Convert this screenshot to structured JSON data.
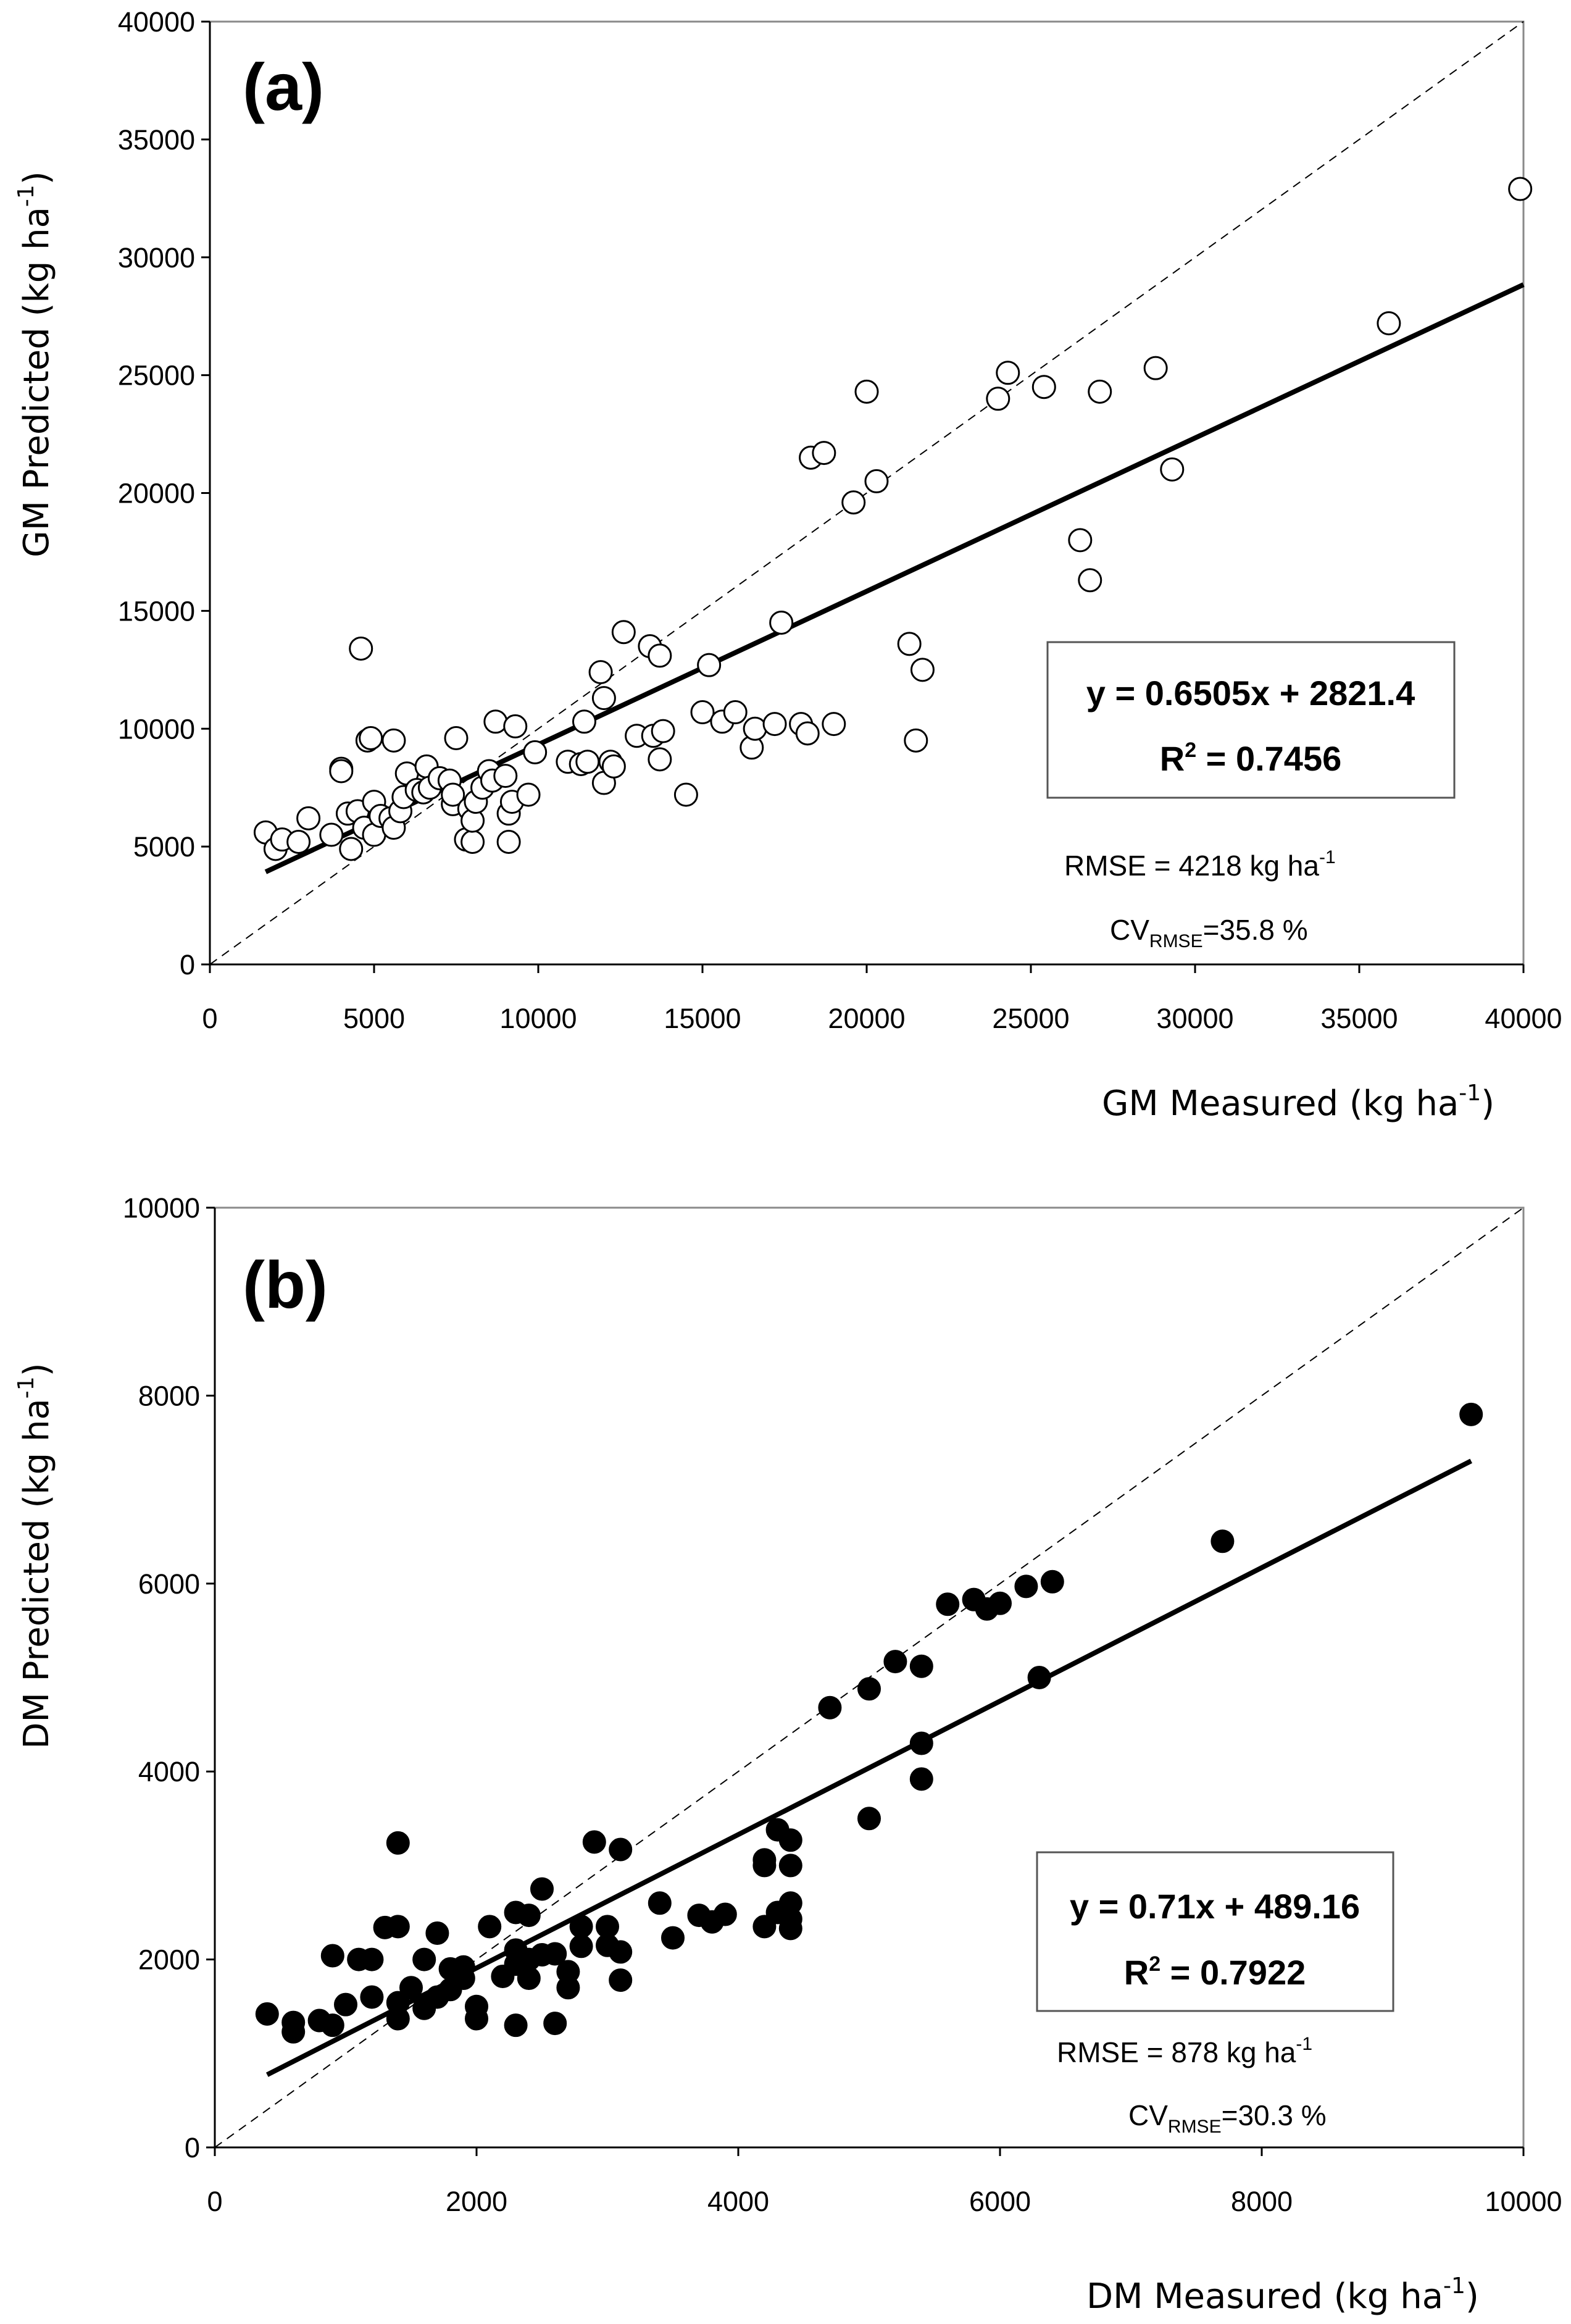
{
  "chart_data": [
    {
      "panel_label": "(a)",
      "type": "scatter",
      "marker": "open-circle",
      "xlabel": {
        "text": "GM Measured (kg ha",
        "sup": "-1",
        "tail": ")"
      },
      "ylabel": {
        "text": "GM Predicted (kg ha",
        "sup": "-1",
        "tail": ")"
      },
      "xlim": [
        0,
        40000
      ],
      "ylim": [
        0,
        40000
      ],
      "xticks": [
        "0",
        "5000",
        "10000",
        "15000",
        "20000",
        "25000",
        "30000",
        "35000",
        "40000"
      ],
      "yticks": [
        "0",
        "5000",
        "10000",
        "15000",
        "20000",
        "25000",
        "30000",
        "35000",
        "40000"
      ],
      "grid": false,
      "equation": "y = 0.6505x + 2821.4",
      "r2": {
        "prefix": "R",
        "sup": "2",
        "value": " = 0.7456"
      },
      "rmse": {
        "text": "RMSE = 4218 kg ha",
        "sup": "-1"
      },
      "cv": {
        "prefix": "CV",
        "sub": "RMSE",
        "value": "=35.8 %"
      },
      "fit": {
        "slope": 0.6505,
        "intercept": 2821.4,
        "x_from": 1700,
        "x_to": 40000
      },
      "one_to_one_line": true,
      "points": [
        [
          1700,
          5600
        ],
        [
          2000,
          4900
        ],
        [
          2200,
          5300
        ],
        [
          2700,
          5200
        ],
        [
          3000,
          6200
        ],
        [
          3700,
          5500
        ],
        [
          4000,
          8300
        ],
        [
          4000,
          8200
        ],
        [
          4200,
          6400
        ],
        [
          4300,
          4900
        ],
        [
          4500,
          6500
        ],
        [
          4600,
          13400
        ],
        [
          4700,
          5800
        ],
        [
          4800,
          9500
        ],
        [
          4900,
          9600
        ],
        [
          5000,
          5500
        ],
        [
          5000,
          6900
        ],
        [
          5200,
          6300
        ],
        [
          5500,
          6200
        ],
        [
          5600,
          5800
        ],
        [
          5600,
          9500
        ],
        [
          5800,
          6500
        ],
        [
          5900,
          7100
        ],
        [
          6000,
          8100
        ],
        [
          6300,
          7400
        ],
        [
          6500,
          7300
        ],
        [
          6600,
          8400
        ],
        [
          6700,
          7500
        ],
        [
          7000,
          7900
        ],
        [
          7300,
          7800
        ],
        [
          7400,
          6800
        ],
        [
          7400,
          7200
        ],
        [
          7500,
          9600
        ],
        [
          7800,
          5300
        ],
        [
          7900,
          6600
        ],
        [
          8000,
          5200
        ],
        [
          8000,
          6100
        ],
        [
          8100,
          6900
        ],
        [
          8300,
          7500
        ],
        [
          8500,
          8200
        ],
        [
          8600,
          7800
        ],
        [
          8700,
          10300
        ],
        [
          9000,
          8000
        ],
        [
          9100,
          5200
        ],
        [
          9100,
          6400
        ],
        [
          9200,
          6900
        ],
        [
          9300,
          10100
        ],
        [
          9700,
          7200
        ],
        [
          9900,
          9000
        ],
        [
          10900,
          8600
        ],
        [
          11300,
          8500
        ],
        [
          11400,
          10300
        ],
        [
          11500,
          8600
        ],
        [
          11900,
          12400
        ],
        [
          12000,
          11300
        ],
        [
          12000,
          7700
        ],
        [
          12200,
          8600
        ],
        [
          12300,
          8400
        ],
        [
          12600,
          14100
        ],
        [
          13000,
          9700
        ],
        [
          13400,
          13500
        ],
        [
          13500,
          9700
        ],
        [
          13700,
          13100
        ],
        [
          13700,
          8700
        ],
        [
          13800,
          9900
        ],
        [
          14500,
          7200
        ],
        [
          15000,
          10700
        ],
        [
          15200,
          12700
        ],
        [
          15600,
          10300
        ],
        [
          16000,
          10700
        ],
        [
          16500,
          9200
        ],
        [
          16600,
          10000
        ],
        [
          17200,
          10200
        ],
        [
          17400,
          14500
        ],
        [
          18000,
          10200
        ],
        [
          18200,
          9800
        ],
        [
          18300,
          21500
        ],
        [
          18700,
          21700
        ],
        [
          19000,
          10200
        ],
        [
          19600,
          19600
        ],
        [
          20000,
          24300
        ],
        [
          20300,
          20500
        ],
        [
          21300,
          13600
        ],
        [
          21500,
          9500
        ],
        [
          21700,
          12500
        ],
        [
          24000,
          24000
        ],
        [
          24300,
          25100
        ],
        [
          25400,
          24500
        ],
        [
          26500,
          18000
        ],
        [
          26800,
          16300
        ],
        [
          27100,
          24300
        ],
        [
          28800,
          25300
        ],
        [
          29300,
          21000
        ],
        [
          35900,
          27200
        ],
        [
          39900,
          32900
        ]
      ]
    },
    {
      "panel_label": "(b)",
      "type": "scatter",
      "marker": "filled-circle",
      "xlabel": {
        "text": "DM Measured (kg ha",
        "sup": "-1",
        "tail": ")"
      },
      "ylabel": {
        "text": "DM Predicted (kg ha",
        "sup": "-1",
        "tail": ")"
      },
      "xlim": [
        0,
        10000
      ],
      "ylim": [
        0,
        10000
      ],
      "xticks": [
        "0",
        "2000",
        "4000",
        "6000",
        "8000",
        "10000"
      ],
      "yticks": [
        "0",
        "2000",
        "4000",
        "6000",
        "8000",
        "10000"
      ],
      "grid": false,
      "equation": "y = 0.71x + 489.16",
      "r2": {
        "prefix": "R",
        "sup": "2",
        "value": " = 0.7922"
      },
      "rmse": {
        "text": "RMSE = 878 kg ha",
        "sup": "-1"
      },
      "cv": {
        "prefix": "CV",
        "sub": "RMSE",
        "value": "=30.3 %"
      },
      "fit": {
        "slope": 0.71,
        "intercept": 489.16,
        "x_from": 400,
        "x_to": 9600
      },
      "one_to_one_line": true,
      "points": [
        [
          400,
          1420
        ],
        [
          600,
          1230
        ],
        [
          600,
          1330
        ],
        [
          800,
          1350
        ],
        [
          900,
          1300
        ],
        [
          900,
          2040
        ],
        [
          1000,
          1520
        ],
        [
          1100,
          2000
        ],
        [
          1200,
          1600
        ],
        [
          1200,
          2000
        ],
        [
          1300,
          2340
        ],
        [
          1400,
          1370
        ],
        [
          1400,
          1540
        ],
        [
          1400,
          2350
        ],
        [
          1400,
          3240
        ],
        [
          1500,
          1700
        ],
        [
          1600,
          1480
        ],
        [
          1600,
          2000
        ],
        [
          1700,
          1600
        ],
        [
          1700,
          2280
        ],
        [
          1800,
          1680
        ],
        [
          1800,
          1900
        ],
        [
          1900,
          1800
        ],
        [
          1900,
          1920
        ],
        [
          2000,
          1370
        ],
        [
          2000,
          1500
        ],
        [
          2100,
          2350
        ],
        [
          2200,
          1820
        ],
        [
          2300,
          1300
        ],
        [
          2300,
          1950
        ],
        [
          2300,
          2100
        ],
        [
          2300,
          2500
        ],
        [
          2400,
          1800
        ],
        [
          2400,
          2000
        ],
        [
          2400,
          2470
        ],
        [
          2500,
          2050
        ],
        [
          2500,
          2750
        ],
        [
          2600,
          1320
        ],
        [
          2600,
          2060
        ],
        [
          2700,
          1700
        ],
        [
          2700,
          1870
        ],
        [
          2800,
          2140
        ],
        [
          2800,
          2350
        ],
        [
          2900,
          3250
        ],
        [
          3000,
          2150
        ],
        [
          3000,
          2350
        ],
        [
          3100,
          1780
        ],
        [
          3100,
          2080
        ],
        [
          3100,
          3170
        ],
        [
          3400,
          2600
        ],
        [
          3500,
          2230
        ],
        [
          3700,
          2470
        ],
        [
          3800,
          2400
        ],
        [
          3900,
          2480
        ],
        [
          4200,
          2350
        ],
        [
          4200,
          3000
        ],
        [
          4200,
          3060
        ],
        [
          4300,
          2500
        ],
        [
          4300,
          3380
        ],
        [
          4400,
          2330
        ],
        [
          4400,
          2430
        ],
        [
          4400,
          2600
        ],
        [
          4400,
          3000
        ],
        [
          4400,
          3270
        ],
        [
          4700,
          4680
        ],
        [
          5000,
          3500
        ],
        [
          5000,
          4880
        ],
        [
          5200,
          5170
        ],
        [
          5400,
          3920
        ],
        [
          5400,
          4300
        ],
        [
          5400,
          5120
        ],
        [
          5600,
          5780
        ],
        [
          5800,
          5830
        ],
        [
          5900,
          5730
        ],
        [
          6000,
          5790
        ],
        [
          6200,
          5970
        ],
        [
          6300,
          5000
        ],
        [
          6400,
          6020
        ],
        [
          7700,
          6450
        ],
        [
          9600,
          7800
        ]
      ]
    }
  ]
}
